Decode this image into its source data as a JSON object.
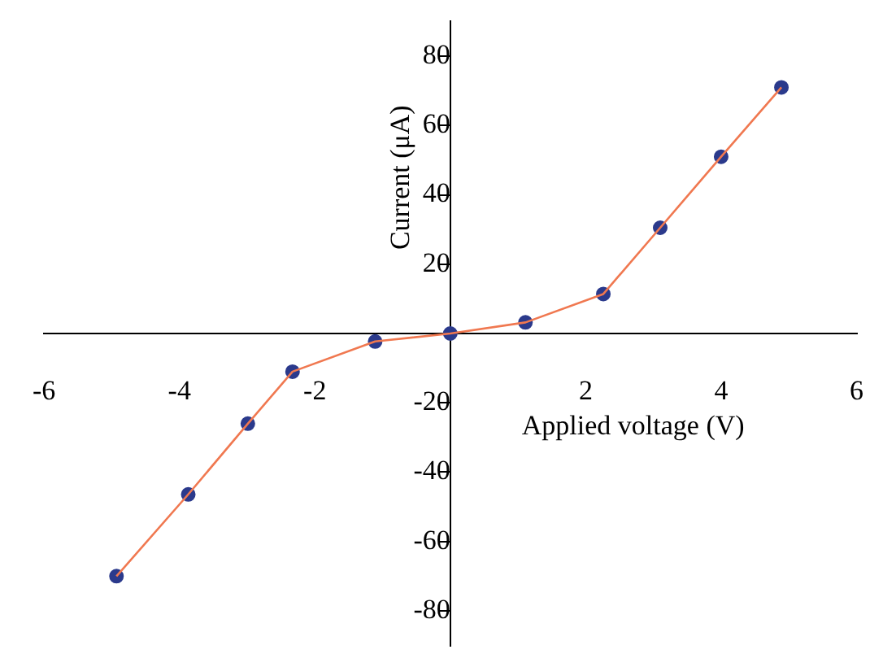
{
  "chart_data": {
    "type": "line",
    "xlabel": "Applied voltage (V)",
    "ylabel": "Current (μA)",
    "xlim": [
      -6,
      6
    ],
    "ylim": [
      -90,
      90
    ],
    "xticks": [
      -6,
      -4,
      -2,
      2,
      4,
      6
    ],
    "yticks": [
      -80,
      -60,
      -40,
      -20,
      20,
      40,
      60,
      80
    ],
    "series": [
      {
        "type": "line",
        "color": "#f07850",
        "marker": "none",
        "x": [
          -4.93,
          -3.87,
          -2.99,
          -2.33,
          -1.11,
          0,
          1.11,
          2.26,
          3.1,
          4.0,
          4.89
        ],
        "values": [
          -70,
          -46.4,
          -26,
          -11,
          -2.3,
          0,
          3.2,
          11.4,
          30.5,
          51,
          71
        ]
      },
      {
        "type": "scatter",
        "color": "#2b3a8c",
        "marker": "circle",
        "x": [
          -4.93,
          -3.87,
          -2.99,
          -2.33,
          -1.11,
          0,
          1.11,
          2.26,
          3.1,
          4.0,
          4.89
        ],
        "values": [
          -70,
          -46.4,
          -26,
          -11,
          -2.3,
          0,
          3.2,
          11.4,
          30.5,
          51,
          71
        ]
      }
    ]
  }
}
